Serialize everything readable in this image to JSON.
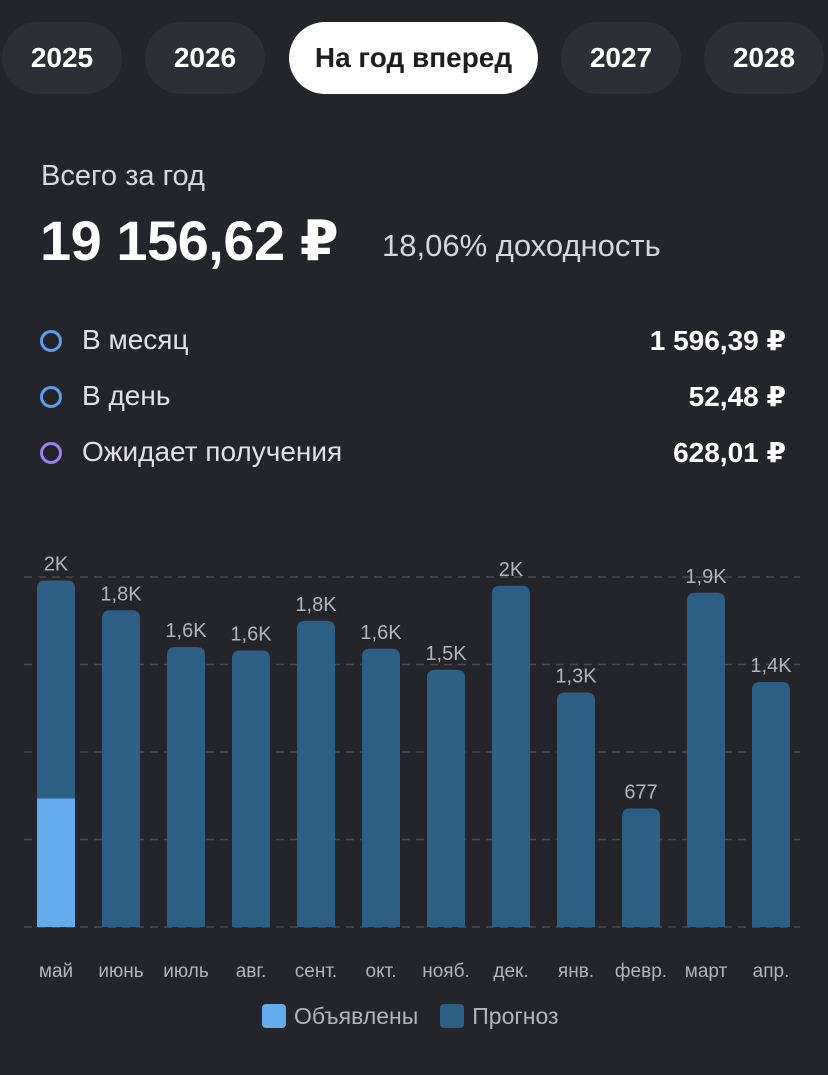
{
  "tabs": [
    {
      "label": "2025",
      "active": false
    },
    {
      "label": "2026",
      "active": false
    },
    {
      "label": "На год вперед",
      "active": true
    },
    {
      "label": "2027",
      "active": false
    },
    {
      "label": "2028",
      "active": false
    }
  ],
  "summary": {
    "total_label": "Всего за год",
    "total_value": "19 156,62 ₽",
    "yield_text": "18,06% доходность"
  },
  "stats": [
    {
      "label": "В месяц",
      "value": "1 596,39 ₽",
      "dot_color": "#5aa0ea"
    },
    {
      "label": "В день",
      "value": "52,48 ₽",
      "dot_color": "#5aa0ea"
    },
    {
      "label": "Ожидает получения",
      "value": "628,01 ₽",
      "dot_color": "#9e83f0"
    }
  ],
  "chart_data": {
    "type": "bar",
    "stacked": true,
    "categories": [
      "май",
      "июнь",
      "июль",
      "авг.",
      "сент.",
      "окт.",
      "нояб.",
      "дек.",
      "янв.",
      "февр.",
      "март",
      "апр."
    ],
    "series": [
      {
        "name": "Объявлены",
        "color": "#64abeb",
        "values": [
          735,
          0,
          0,
          0,
          0,
          0,
          0,
          0,
          0,
          0,
          0,
          0
        ]
      },
      {
        "name": "Прогноз",
        "color": "#2c5f83",
        "values": [
          1245,
          1810,
          1600,
          1580,
          1750,
          1590,
          1470,
          1950,
          1340,
          677,
          1910,
          1400
        ]
      }
    ],
    "data_labels": [
      "2K",
      "1,8K",
      "1,6K",
      "1,6K",
      "1,8K",
      "1,6K",
      "1,5K",
      "2K",
      "1,3K",
      "677",
      "1,9K",
      "1,4K"
    ],
    "ylim": [
      0,
      2000
    ],
    "grid": true,
    "grid_style": "dashed",
    "legend_position": "bottom-center"
  }
}
